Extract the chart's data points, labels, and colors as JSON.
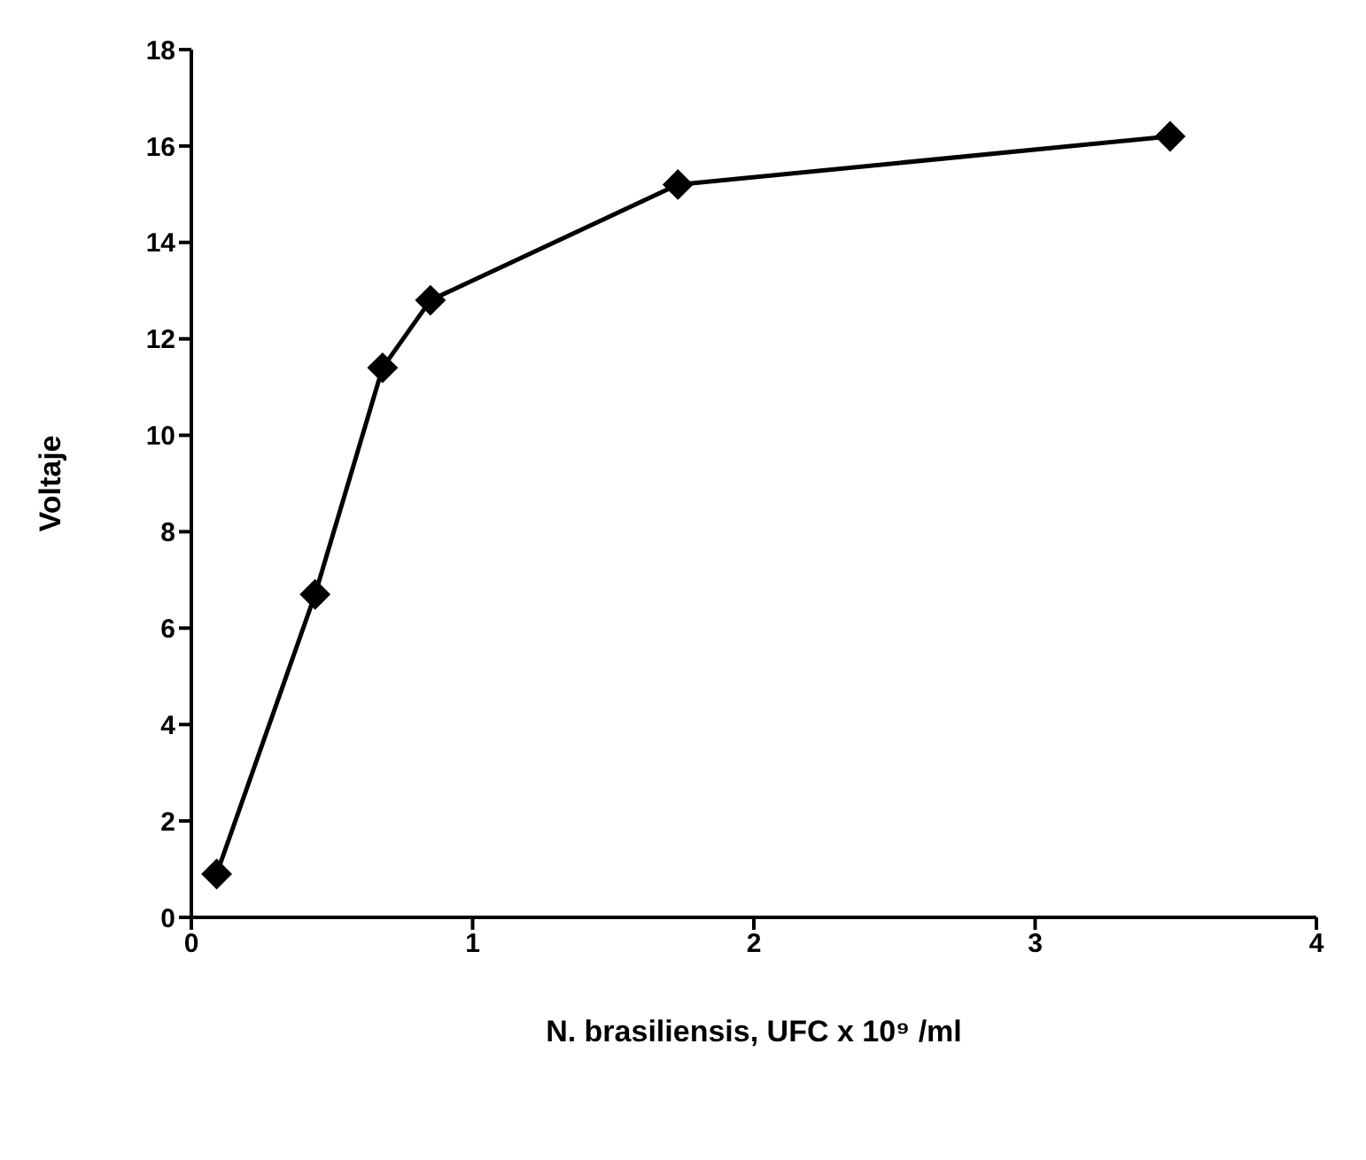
{
  "chart_data": {
    "type": "line",
    "xlabel": "N. brasiliensis, UFC x 10⁹ /ml",
    "ylabel": "Voltaje",
    "x": [
      0.09,
      0.44,
      0.68,
      0.85,
      1.73,
      3.48
    ],
    "series": [
      {
        "color": "#000000",
        "values": [
          0.9,
          6.7,
          11.4,
          12.8,
          15.2,
          16.2
        ]
      }
    ],
    "xlim": [
      0,
      4
    ],
    "xticks": [
      0,
      1,
      2,
      3,
      4
    ],
    "ylim": [
      0,
      18
    ],
    "yticks": [
      0,
      2,
      4,
      6,
      8,
      10,
      12,
      14,
      16,
      18
    ],
    "marker": "diamond",
    "line_style": "solid",
    "grid": false,
    "legend": false
  }
}
